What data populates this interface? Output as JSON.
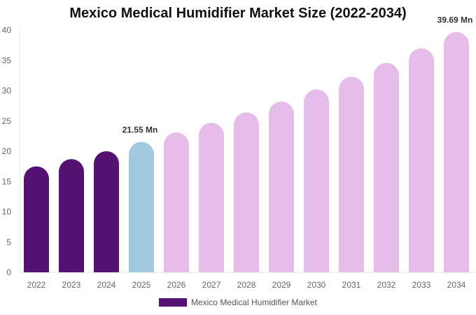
{
  "chart_data": {
    "type": "bar",
    "title": "Mexico Medical Humidifier Market Size (2022-2034)",
    "categories": [
      "2022",
      "2023",
      "2024",
      "2025",
      "2026",
      "2027",
      "2028",
      "2029",
      "2030",
      "2031",
      "2032",
      "2033",
      "2034"
    ],
    "series": [
      {
        "name": "Mexico Medical Humidifier Market",
        "values": [
          17.5,
          18.7,
          20.0,
          21.55,
          23.1,
          24.7,
          26.4,
          28.2,
          30.2,
          32.3,
          34.6,
          37.0,
          39.69
        ]
      }
    ],
    "data_labels": [
      {
        "category": "2025",
        "text": "21.55 Mn"
      },
      {
        "category": "2034",
        "text": "39.69 Mn"
      }
    ],
    "ylim": [
      0,
      40
    ],
    "yticks": [
      0,
      5,
      10,
      15,
      20,
      25,
      30,
      35,
      40
    ],
    "xlabel": "",
    "ylabel": "",
    "grid": false,
    "legend_position": "bottom",
    "colors": {
      "historical": "#541272",
      "current": "#a3c9de",
      "forecast": "#e6bde9"
    }
  }
}
